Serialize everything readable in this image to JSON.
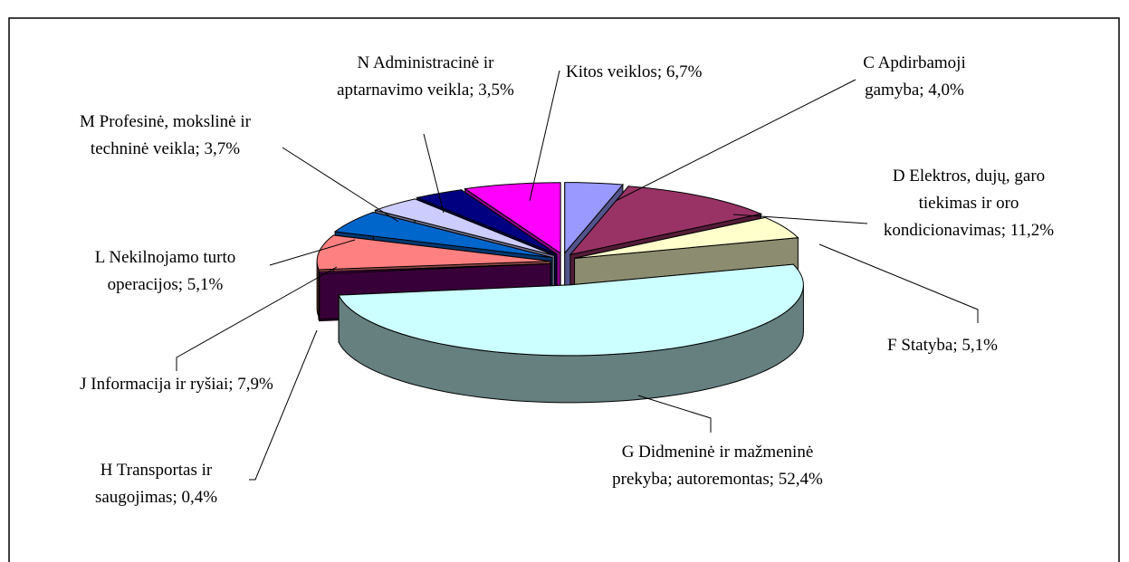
{
  "chart_data": {
    "type": "pie3d",
    "categories": [
      "C Apdirbamoji gamyba",
      "D Elektros, dujų, garo tiekimas ir oro kondicionavimas",
      "F Statyba",
      "G Didmeninė ir mažmeninė prekyba; autoremontas",
      "H Transportas ir saugojimas",
      "J Informacija ir ryšiai",
      "L Nekilnojamo turto operacijos",
      "M Profesinė, mokslinė ir techninė veikla",
      "N Administracinė ir aptarnavimo veikla",
      "Kitos veiklos"
    ],
    "values": [
      4.0,
      11.2,
      5.1,
      52.4,
      0.4,
      7.9,
      5.1,
      3.7,
      3.5,
      6.7
    ],
    "value_labels": [
      "4,0%",
      "11,2%",
      "5,1%",
      "52,4%",
      "0,4%",
      "7,9%",
      "5,1%",
      "3,7%",
      "3,5%",
      "6,7%"
    ],
    "label_separator": "; ",
    "colors": [
      "#9999ff",
      "#993366",
      "#ffffcc",
      "#ccffff",
      "#660066",
      "#ff8080",
      "#0066cc",
      "#ccccff",
      "#000080",
      "#ff00ff"
    ]
  }
}
